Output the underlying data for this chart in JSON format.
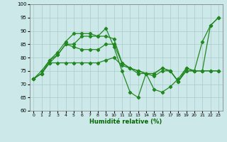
{
  "xlabel": "Humidité relative (%)",
  "xlim": [
    -0.5,
    23.5
  ],
  "ylim": [
    60,
    100
  ],
  "yticks": [
    60,
    65,
    70,
    75,
    80,
    85,
    90,
    95,
    100
  ],
  "xticks": [
    0,
    1,
    2,
    3,
    4,
    5,
    6,
    7,
    8,
    9,
    10,
    11,
    12,
    13,
    14,
    15,
    16,
    17,
    18,
    19,
    20,
    21,
    22,
    23
  ],
  "bg_color": "#cce8e8",
  "grid_color": "#aacccc",
  "line_color": "#228822",
  "series": [
    [
      72,
      75,
      79,
      82,
      86,
      89,
      89,
      89,
      88,
      91,
      84,
      75,
      67,
      65,
      74,
      68,
      67,
      69,
      72,
      76,
      75,
      86,
      92,
      95
    ],
    [
      72,
      74,
      79,
      81,
      85,
      85,
      88,
      88,
      88,
      88,
      87,
      78,
      76,
      74,
      74,
      74,
      76,
      75,
      71,
      76,
      75,
      75,
      92,
      95
    ],
    [
      72,
      74,
      78,
      81,
      85,
      84,
      83,
      83,
      83,
      85,
      85,
      78,
      76,
      75,
      74,
      74,
      76,
      75,
      71,
      75,
      75,
      75,
      75,
      75
    ],
    [
      72,
      74,
      78,
      78,
      78,
      78,
      78,
      78,
      78,
      79,
      80,
      77,
      76,
      75,
      74,
      73,
      75,
      75,
      71,
      75,
      75,
      75,
      75,
      75
    ]
  ]
}
